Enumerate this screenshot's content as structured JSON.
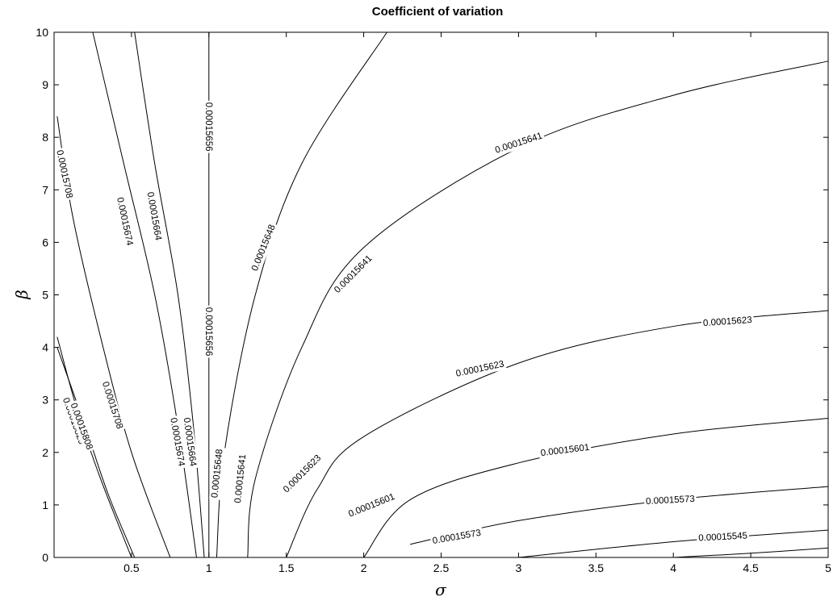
{
  "chart_data": {
    "type": "contour",
    "title": "Coefficient of variation",
    "xlabel": "σ",
    "ylabel": "β",
    "xlim": [
      0,
      5
    ],
    "ylim": [
      0,
      10
    ],
    "xticks": [
      "0.5",
      "1",
      "1.5",
      "2",
      "2.5",
      "3",
      "3.5",
      "4",
      "4.5",
      "5"
    ],
    "yticks": [
      "0",
      "1",
      "2",
      "3",
      "4",
      "5",
      "6",
      "7",
      "8",
      "9",
      "10"
    ],
    "grid": false,
    "contours": [
      {
        "level": "0.00015829",
        "points": [
          [
            0.02,
            4.2
          ],
          [
            0.15,
            2.8
          ],
          [
            0.3,
            1.5
          ],
          [
            0.5,
            0.0
          ]
        ],
        "labels": [
          {
            "text": "0.00015829",
            "x": 0.13,
            "y": 2.6,
            "angle": 70
          }
        ]
      },
      {
        "level": "0.00015808",
        "points": [
          [
            0.02,
            4.0
          ],
          [
            0.2,
            2.5
          ],
          [
            0.35,
            1.2
          ],
          [
            0.52,
            0.0
          ]
        ],
        "labels": [
          {
            "text": "0.00015808",
            "x": 0.18,
            "y": 2.5,
            "angle": 70
          }
        ]
      },
      {
        "level": "0.00015708",
        "points": [
          [
            0.02,
            8.4
          ],
          [
            0.12,
            6.5
          ],
          [
            0.3,
            4.2
          ],
          [
            0.5,
            2.0
          ],
          [
            0.75,
            0.0
          ]
        ],
        "labels": [
          {
            "text": "0.00015708",
            "x": 0.07,
            "y": 7.3,
            "angle": 78
          },
          {
            "text": "0.00015708",
            "x": 0.38,
            "y": 2.9,
            "angle": 72
          }
        ]
      },
      {
        "level": "0.00015674",
        "points": [
          [
            0.25,
            10.0
          ],
          [
            0.45,
            7.5
          ],
          [
            0.65,
            5.0
          ],
          [
            0.8,
            2.5
          ],
          [
            0.92,
            0.0
          ]
        ],
        "labels": [
          {
            "text": "0.00015674",
            "x": 0.46,
            "y": 6.4,
            "angle": 78
          },
          {
            "text": "0.00015674",
            "x": 0.8,
            "y": 2.2,
            "angle": 80
          }
        ]
      },
      {
        "level": "0.00015664",
        "points": [
          [
            0.52,
            10.0
          ],
          [
            0.65,
            7.5
          ],
          [
            0.8,
            5.0
          ],
          [
            0.9,
            2.5
          ],
          [
            0.97,
            0.0
          ]
        ],
        "labels": [
          {
            "text": "0.00015664",
            "x": 0.65,
            "y": 6.5,
            "angle": 80
          },
          {
            "text": "0.00015664",
            "x": 0.88,
            "y": 2.2,
            "angle": 82
          }
        ]
      },
      {
        "level": "0.00015656",
        "points": [
          [
            1.0,
            10.0
          ],
          [
            1.0,
            5.0
          ],
          [
            1.0,
            0.0
          ]
        ],
        "labels": [
          {
            "text": "0.00015656",
            "x": 1.0,
            "y": 8.2,
            "angle": 90
          },
          {
            "text": "0.00015656",
            "x": 1.0,
            "y": 4.3,
            "angle": 90
          }
        ]
      },
      {
        "level": "0.00015648",
        "points": [
          [
            1.05,
            0.0
          ],
          [
            1.1,
            2.0
          ],
          [
            1.3,
            5.0
          ],
          [
            1.6,
            7.5
          ],
          [
            2.15,
            10.0
          ]
        ],
        "labels": [
          {
            "text": "0.00015648",
            "x": 1.05,
            "y": 1.6,
            "angle": -84
          },
          {
            "text": "0.00015648",
            "x": 1.35,
            "y": 5.9,
            "angle": -68
          }
        ]
      },
      {
        "level": "0.00015641",
        "points": [
          [
            1.25,
            0.0
          ],
          [
            1.3,
            1.5
          ],
          [
            1.6,
            4.0
          ],
          [
            2.0,
            5.9
          ],
          [
            3.0,
            7.8
          ],
          [
            4.0,
            8.8
          ],
          [
            5.0,
            9.45
          ]
        ],
        "labels": [
          {
            "text": "0.00015641",
            "x": 1.2,
            "y": 1.5,
            "angle": -84
          },
          {
            "text": "0.00015641",
            "x": 1.93,
            "y": 5.4,
            "angle": -45
          },
          {
            "text": "0.00015641",
            "x": 3.0,
            "y": 7.9,
            "angle": -18
          }
        ]
      },
      {
        "level": "0.00015623",
        "points": [
          [
            1.5,
            0.0
          ],
          [
            1.7,
            1.3
          ],
          [
            2.0,
            2.3
          ],
          [
            3.0,
            3.7
          ],
          [
            4.0,
            4.4
          ],
          [
            5.0,
            4.7
          ]
        ],
        "labels": [
          {
            "text": "0.00015623",
            "x": 1.6,
            "y": 1.6,
            "angle": -45
          },
          {
            "text": "0.00015623",
            "x": 2.75,
            "y": 3.6,
            "angle": -12
          },
          {
            "text": "0.00015623",
            "x": 4.35,
            "y": 4.5,
            "angle": -4
          }
        ]
      },
      {
        "level": "0.00015601",
        "points": [
          [
            2.0,
            0.0
          ],
          [
            2.3,
            1.1
          ],
          [
            3.0,
            1.8
          ],
          [
            4.0,
            2.35
          ],
          [
            5.0,
            2.65
          ]
        ],
        "labels": [
          {
            "text": "0.00015601",
            "x": 2.05,
            "y": 1.0,
            "angle": -22
          },
          {
            "text": "0.00015601",
            "x": 3.3,
            "y": 2.05,
            "angle": -7
          }
        ]
      },
      {
        "level": "0.00015573",
        "points": [
          [
            2.3,
            0.25
          ],
          [
            3.0,
            0.7
          ],
          [
            4.0,
            1.1
          ],
          [
            5.0,
            1.35
          ]
        ],
        "labels": [
          {
            "text": "0.00015573",
            "x": 2.6,
            "y": 0.4,
            "angle": -10
          },
          {
            "text": "0.00015573",
            "x": 3.98,
            "y": 1.1,
            "angle": -3
          }
        ]
      },
      {
        "level": "0.00015545",
        "points": [
          [
            3.0,
            0.0
          ],
          [
            4.0,
            0.3
          ],
          [
            5.0,
            0.52
          ]
        ],
        "labels": [
          {
            "text": "0.00015545",
            "x": 4.32,
            "y": 0.4,
            "angle": -3
          }
        ]
      },
      {
        "level": "",
        "points": [
          [
            4.0,
            0.0
          ],
          [
            4.5,
            0.08
          ],
          [
            5.0,
            0.18
          ]
        ],
        "labels": []
      }
    ]
  }
}
